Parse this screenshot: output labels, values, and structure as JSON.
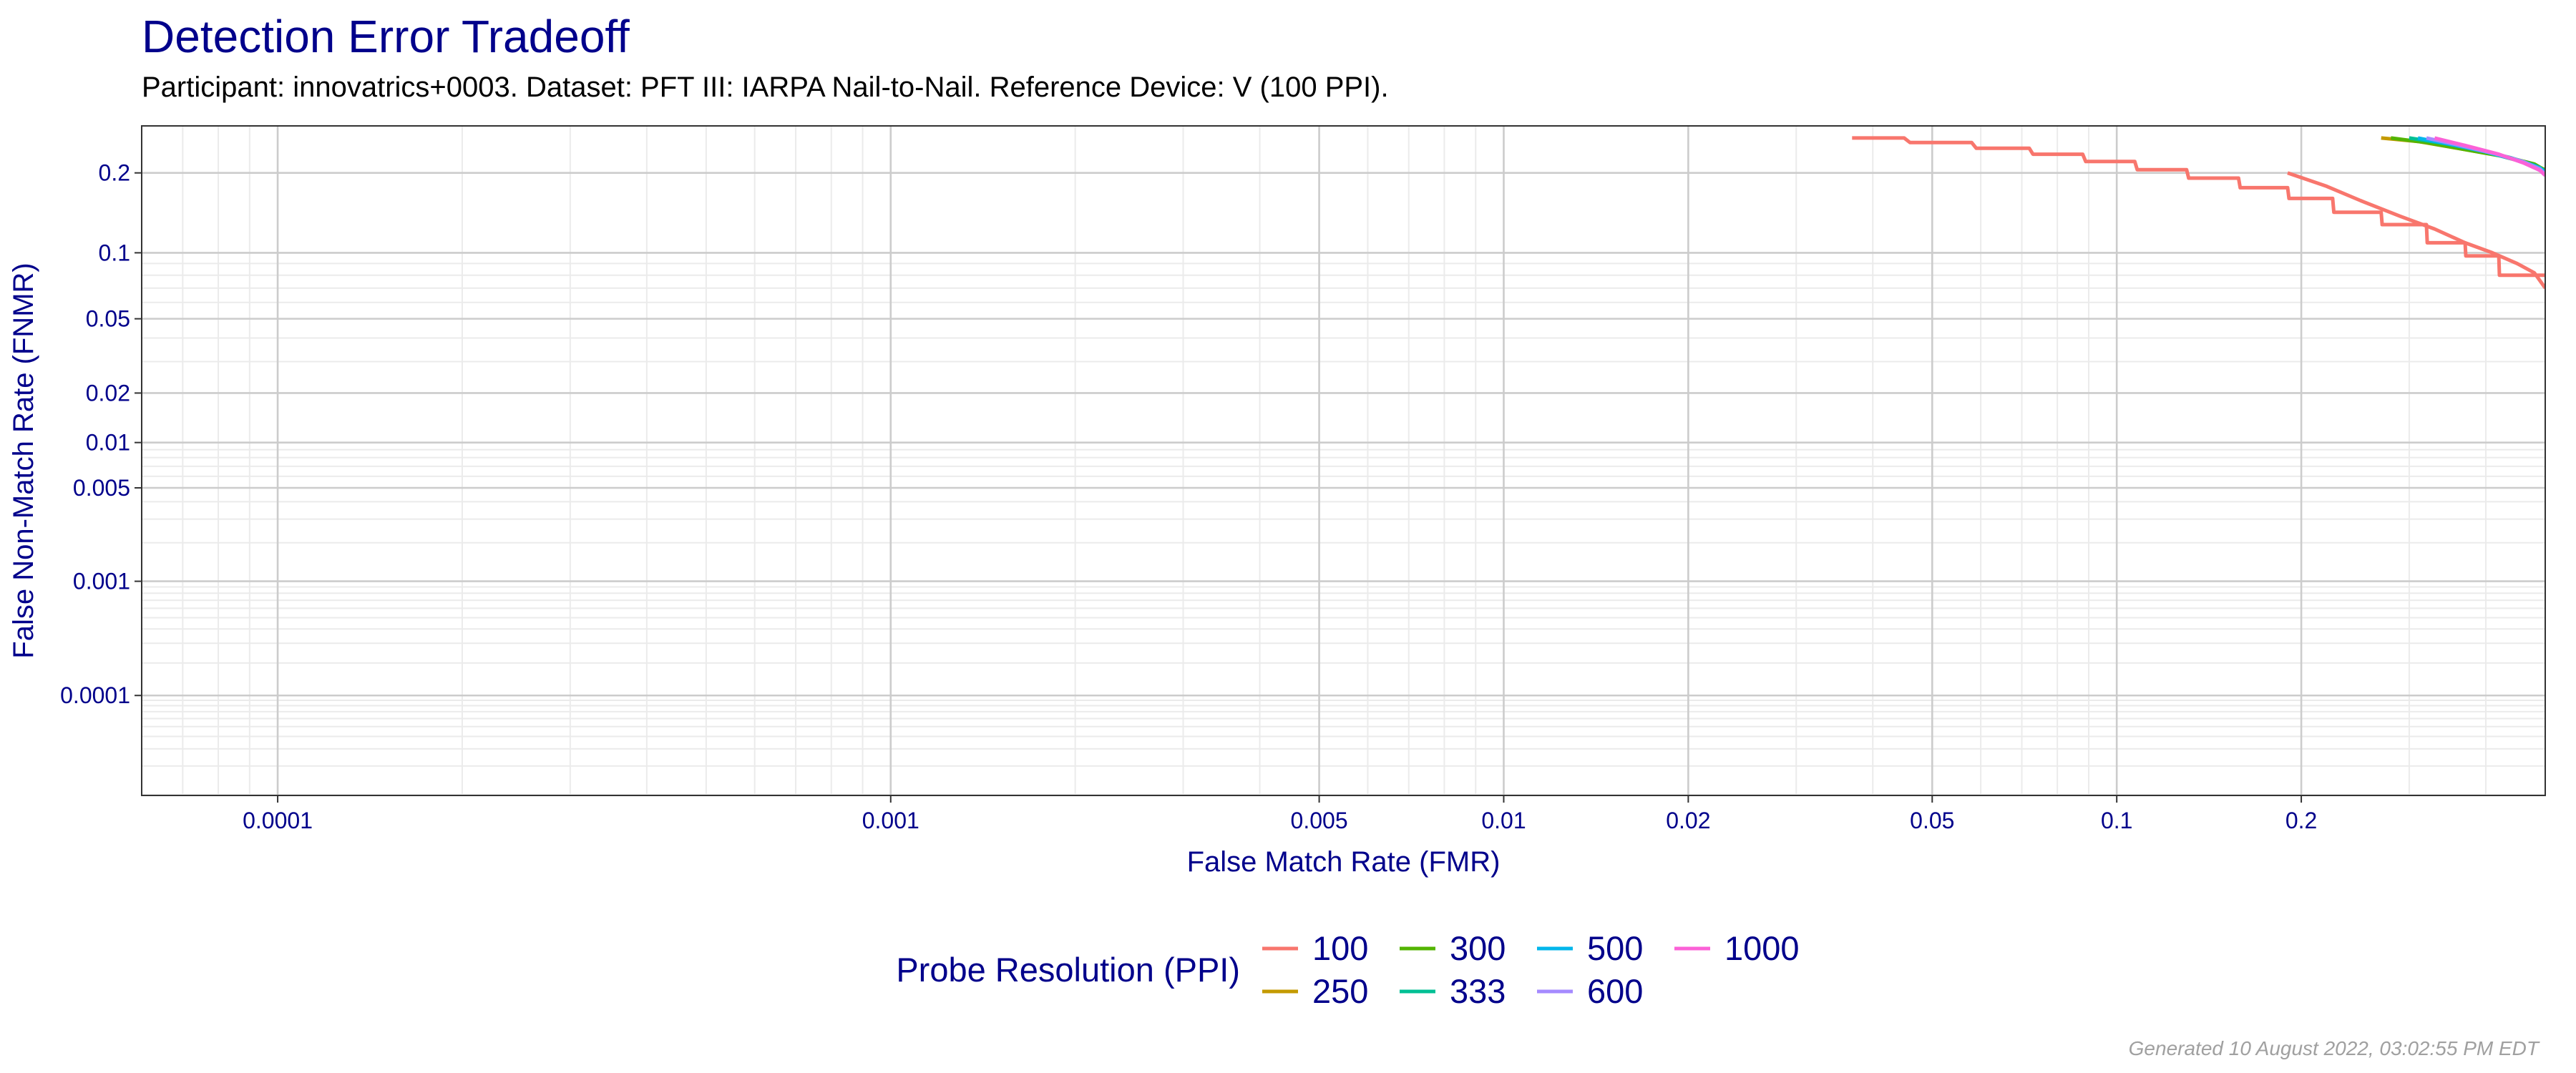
{
  "chart_data": {
    "type": "line",
    "title": "Detection Error Tradeoff",
    "subtitle": "Participant: innovatrics+0003. Dataset: PFT III: IARPA Nail-to-Nail. Reference Device: V (100 PPI).",
    "xlabel": "False Match Rate (FMR)",
    "ylabel": "False Non-Match Rate (FNMR)",
    "x_scale": "log",
    "y_scale": "probit",
    "xlim": [
      6e-05,
      0.5
    ],
    "ylim": [
      9.8e-06,
      0.28
    ],
    "x_ticks": [
      {
        "value": 0.0001,
        "label": "0.0001"
      },
      {
        "value": 0.001,
        "label": "0.001"
      },
      {
        "value": 0.005,
        "label": "0.005"
      },
      {
        "value": 0.01,
        "label": "0.01"
      },
      {
        "value": 0.02,
        "label": "0.02"
      },
      {
        "value": 0.05,
        "label": "0.05"
      },
      {
        "value": 0.1,
        "label": "0.1"
      },
      {
        "value": 0.2,
        "label": "0.2"
      }
    ],
    "y_ticks": [
      {
        "value": 0.2,
        "label": "0.2"
      },
      {
        "value": 0.1,
        "label": "0.1"
      },
      {
        "value": 0.05,
        "label": "0.05"
      },
      {
        "value": 0.02,
        "label": "0.02"
      },
      {
        "value": 0.01,
        "label": "0.01"
      },
      {
        "value": 0.005,
        "label": "0.005"
      },
      {
        "value": 0.001,
        "label": "0.001"
      },
      {
        "value": 0.0001,
        "label": "0.0001"
      }
    ],
    "grid": true,
    "legend": {
      "title": "Probe Resolution (PPI)",
      "placement": "bottom"
    },
    "series": [
      {
        "name": "100",
        "color": "#F8766D",
        "x": [
          0.037,
          0.045,
          0.046,
          0.058,
          0.059,
          0.072,
          0.073,
          0.088,
          0.089,
          0.107,
          0.108,
          0.13,
          0.131,
          0.158,
          0.159,
          0.19,
          0.191,
          0.225,
          0.226,
          0.27,
          0.271,
          0.32,
          0.321,
          0.37,
          0.371,
          0.42,
          0.421,
          0.5
        ],
        "y": [
          0.258,
          0.258,
          0.25,
          0.25,
          0.24,
          0.24,
          0.23,
          0.23,
          0.218,
          0.218,
          0.205,
          0.205,
          0.192,
          0.192,
          0.178,
          0.178,
          0.163,
          0.163,
          0.145,
          0.145,
          0.13,
          0.13,
          0.11,
          0.11,
          0.097,
          0.097,
          0.08,
          0.08
        ]
      },
      {
        "name": "100",
        "color": "#F8766D",
        "x": [
          0.19,
          0.22,
          0.25,
          0.29,
          0.33,
          0.37,
          0.41,
          0.45,
          0.48,
          0.5
        ],
        "y": [
          0.2,
          0.18,
          0.16,
          0.14,
          0.125,
          0.11,
          0.1,
          0.09,
          0.082,
          0.07
        ]
      },
      {
        "name": "250",
        "color": "#C49A00",
        "x": [
          0.27,
          0.31,
          0.36,
          0.42,
          0.47,
          0.5
        ],
        "y": [
          0.258,
          0.252,
          0.24,
          0.228,
          0.215,
          0.205
        ]
      },
      {
        "name": "300",
        "color": "#53B400",
        "x": [
          0.28,
          0.32,
          0.37,
          0.43,
          0.48,
          0.5
        ],
        "y": [
          0.258,
          0.25,
          0.238,
          0.226,
          0.214,
          0.204
        ]
      },
      {
        "name": "333",
        "color": "#00C094",
        "x": [
          0.3,
          0.34,
          0.39,
          0.44,
          0.48,
          0.5
        ],
        "y": [
          0.258,
          0.249,
          0.237,
          0.224,
          0.212,
          0.203
        ]
      },
      {
        "name": "500",
        "color": "#00B6EB",
        "x": [
          0.31,
          0.35,
          0.4,
          0.45,
          0.49,
          0.5
        ],
        "y": [
          0.258,
          0.247,
          0.234,
          0.22,
          0.208,
          0.2
        ]
      },
      {
        "name": "600",
        "color": "#A58AFF",
        "x": [
          0.32,
          0.36,
          0.41,
          0.46,
          0.49,
          0.5
        ],
        "y": [
          0.258,
          0.246,
          0.232,
          0.218,
          0.206,
          0.198
        ]
      },
      {
        "name": "1000",
        "color": "#FB61D7",
        "x": [
          0.33,
          0.37,
          0.42,
          0.46,
          0.49,
          0.5
        ],
        "y": [
          0.258,
          0.245,
          0.23,
          0.216,
          0.204,
          0.196
        ]
      }
    ],
    "legend_items": [
      {
        "label": "100",
        "color": "#F8766D"
      },
      {
        "label": "250",
        "color": "#C49A00"
      },
      {
        "label": "300",
        "color": "#53B400"
      },
      {
        "label": "333",
        "color": "#00C094"
      },
      {
        "label": "500",
        "color": "#00B6EB"
      },
      {
        "label": "600",
        "color": "#A58AFF"
      },
      {
        "label": "1000",
        "color": "#FB61D7"
      }
    ]
  },
  "footer": "Generated 10 August 2022, 03:02:55 PM EDT"
}
